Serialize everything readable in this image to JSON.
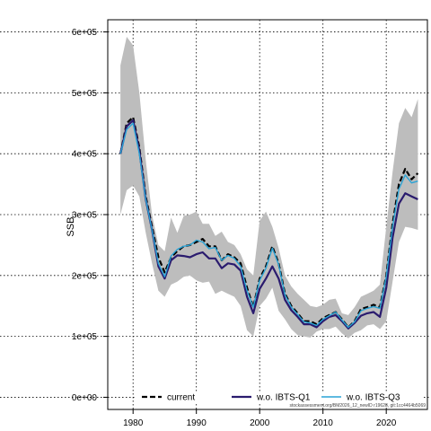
{
  "chart_data": {
    "type": "line",
    "xlabel": "",
    "ylabel": "SSB",
    "xlim": [
      1976,
      2026.5
    ],
    "ylim": [
      -20000,
      620000
    ],
    "grid": true,
    "legend_placement": "bottom",
    "caption": "stockassessment.org/BM2026_12_newID r19628, git:1cc4464b5069",
    "x_ticks": [
      {
        "value": 1980,
        "label": "1980"
      },
      {
        "value": 1990,
        "label": "1990"
      },
      {
        "value": 2000,
        "label": "2000"
      },
      {
        "value": 2010,
        "label": "2010"
      },
      {
        "value": 2020,
        "label": "2020"
      }
    ],
    "y_ticks": [
      {
        "value": 0,
        "label": "0e+00"
      },
      {
        "value": 100000,
        "label": "1e+05"
      },
      {
        "value": 200000,
        "label": "2e+05"
      },
      {
        "value": 300000,
        "label": "3e+05"
      },
      {
        "value": 400000,
        "label": "4e+05"
      },
      {
        "value": 500000,
        "label": "5e+05"
      },
      {
        "value": 600000,
        "label": "6e+05"
      }
    ],
    "x": [
      1978,
      1979,
      1980,
      1981,
      1982,
      1983,
      1984,
      1985,
      1986,
      1987,
      1988,
      1989,
      1990,
      1991,
      1992,
      1993,
      1994,
      1995,
      1996,
      1997,
      1998,
      1999,
      2000,
      2001,
      2002,
      2003,
      2004,
      2005,
      2006,
      2007,
      2008,
      2009,
      2010,
      2011,
      2012,
      2013,
      2014,
      2015,
      2016,
      2017,
      2018,
      2019,
      2020,
      2021,
      2022,
      2023,
      2024,
      2025
    ],
    "band": {
      "upper": [
        545000,
        592000,
        578000,
        500000,
        390000,
        300000,
        250000,
        240000,
        295000,
        270000,
        298000,
        300000,
        305000,
        285000,
        285000,
        265000,
        272000,
        255000,
        250000,
        235000,
        210000,
        200000,
        290000,
        305000,
        280000,
        245000,
        200000,
        182000,
        170000,
        160000,
        150000,
        148000,
        152000,
        160000,
        162000,
        138000,
        135000,
        148000,
        165000,
        170000,
        175000,
        185000,
        280000,
        370000,
        450000,
        475000,
        460000,
        490000
      ],
      "lower": [
        300000,
        340000,
        348000,
        330000,
        270000,
        220000,
        175000,
        165000,
        185000,
        190000,
        198000,
        200000,
        192000,
        188000,
        190000,
        170000,
        175000,
        170000,
        165000,
        150000,
        110000,
        100000,
        150000,
        162000,
        180000,
        142000,
        128000,
        112000,
        102000,
        100000,
        98000,
        108000,
        112000,
        112000,
        116000,
        105000,
        97000,
        106000,
        110000,
        118000,
        120000,
        112000,
        125000,
        190000,
        255000,
        280000,
        278000,
        275000
      ]
    },
    "series": [
      {
        "name": "current",
        "color": "#000000",
        "values": [
          400000,
          450000,
          460000,
          410000,
          330000,
          280000,
          230000,
          205000,
          230000,
          240000,
          248000,
          250000,
          255000,
          260000,
          248000,
          248000,
          225000,
          235000,
          230000,
          220000,
          180000,
          148000,
          195000,
          215000,
          248000,
          220000,
          170000,
          150000,
          138000,
          125000,
          125000,
          120000,
          130000,
          135000,
          140000,
          128000,
          115000,
          125000,
          145000,
          148000,
          152000,
          148000,
          200000,
          285000,
          350000,
          375000,
          358000,
          368000
        ]
      },
      {
        "name": "w.o. IBTS-Q1",
        "color": "#2a1b6e",
        "values": [
          400000,
          445000,
          455000,
          405000,
          325000,
          275000,
          215000,
          195000,
          225000,
          233000,
          232000,
          230000,
          235000,
          238000,
          228000,
          228000,
          212000,
          220000,
          218000,
          208000,
          165000,
          138000,
          178000,
          195000,
          215000,
          195000,
          160000,
          143000,
          132000,
          120000,
          120000,
          115000,
          125000,
          132000,
          135000,
          125000,
          113000,
          122000,
          134000,
          138000,
          140000,
          132000,
          180000,
          262000,
          318000,
          335000,
          330000,
          325000
        ]
      },
      {
        "name": "w.o. IBTS-Q3",
        "color": "#29a3d6",
        "values": [
          400000,
          440000,
          450000,
          400000,
          325000,
          275000,
          220000,
          198000,
          232000,
          243000,
          248000,
          250000,
          258000,
          255000,
          244000,
          246000,
          225000,
          233000,
          228000,
          215000,
          175000,
          148000,
          192000,
          212000,
          245000,
          218000,
          168000,
          148000,
          136000,
          124000,
          122000,
          118000,
          128000,
          134000,
          140000,
          127000,
          115000,
          124000,
          142000,
          146000,
          149000,
          146000,
          198000,
          280000,
          342000,
          365000,
          352000,
          355000
        ]
      }
    ]
  }
}
